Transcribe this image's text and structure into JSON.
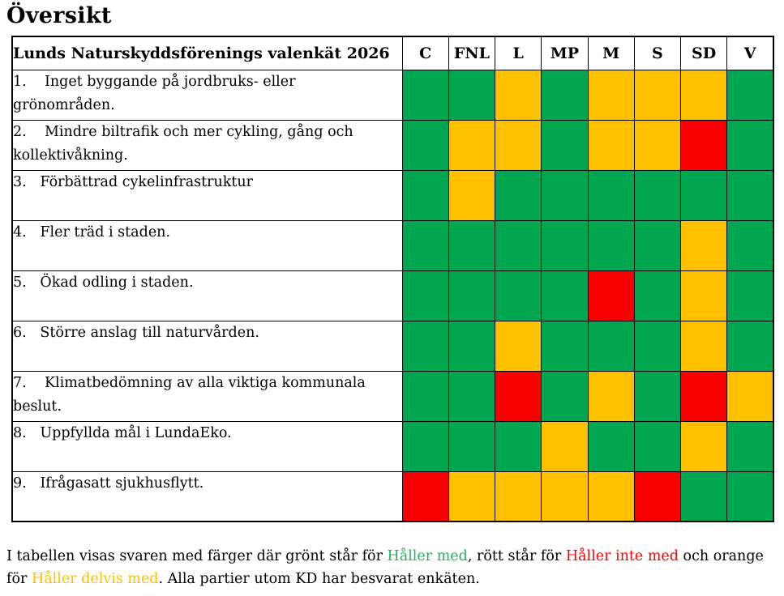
{
  "page": {
    "title": "Översikt"
  },
  "table": {
    "header": {
      "question_label": "Lunds Naturskyddsförenings valenkät 2026",
      "parties": [
        "C",
        "FNL",
        "L",
        "MP",
        "M",
        "S",
        "SD",
        "V"
      ]
    },
    "rows": [
      {
        "label": "1.    Inget byggande på jordbruks- eller grönområden.",
        "answers": [
          "green",
          "green",
          "yellow",
          "green",
          "yellow",
          "yellow",
          "yellow",
          "green"
        ]
      },
      {
        "label": "2.    Mindre biltrafik och mer cykling, gång och kollektivåkning.",
        "answers": [
          "green",
          "yellow",
          "yellow",
          "green",
          "yellow",
          "yellow",
          "red",
          "green"
        ]
      },
      {
        "label": "3.   Förbättrad cykelinfrastruktur",
        "answers": [
          "green",
          "yellow",
          "green",
          "green",
          "green",
          "green",
          "green",
          "green"
        ]
      },
      {
        "label": "4.   Fler träd i staden.",
        "answers": [
          "green",
          "green",
          "green",
          "green",
          "green",
          "green",
          "yellow",
          "green"
        ]
      },
      {
        "label": "5.   Ökad odling i staden.",
        "answers": [
          "green",
          "green",
          "green",
          "green",
          "red",
          "green",
          "yellow",
          "green"
        ]
      },
      {
        "label": "6.   Större anslag till naturvården.",
        "answers": [
          "green",
          "green",
          "yellow",
          "green",
          "green",
          "green",
          "yellow",
          "green"
        ]
      },
      {
        "label": "7.    Klimatbedömning av alla viktiga kommunala beslut.",
        "answers": [
          "green",
          "green",
          "red",
          "green",
          "yellow",
          "green",
          "red",
          "yellow"
        ]
      },
      {
        "label": "8.   Uppfyllda mål i LundaEko.",
        "answers": [
          "green",
          "green",
          "green",
          "yellow",
          "green",
          "green",
          "yellow",
          "green"
        ]
      },
      {
        "label": "9.   Ifrågasatt sjukhusflytt.",
        "answers": [
          "red",
          "yellow",
          "yellow",
          "yellow",
          "yellow",
          "red",
          "green",
          "green"
        ]
      }
    ]
  },
  "legend": {
    "colors": {
      "green": "#00A650",
      "yellow": "#FFC000",
      "red": "#F80000"
    },
    "text_colors": {
      "black": "#000000",
      "green": "#27AE60",
      "red": "#FF0000",
      "yellow": "#FFC000"
    },
    "text_parts": [
      {
        "text": "I tabellen visas svaren med färger där grönt står för ",
        "color": "black"
      },
      {
        "text": "Håller med",
        "color": "green"
      },
      {
        "text": ", rött står för ",
        "color": "black"
      },
      {
        "text": "Håller inte med",
        "color": "red"
      },
      {
        "text": " och orange för ",
        "color": "black"
      },
      {
        "text": "Håller delvis med",
        "color": "yellow"
      },
      {
        "text": ". Alla partier utom KD har besvarat enkäten.",
        "color": "black"
      }
    ]
  }
}
